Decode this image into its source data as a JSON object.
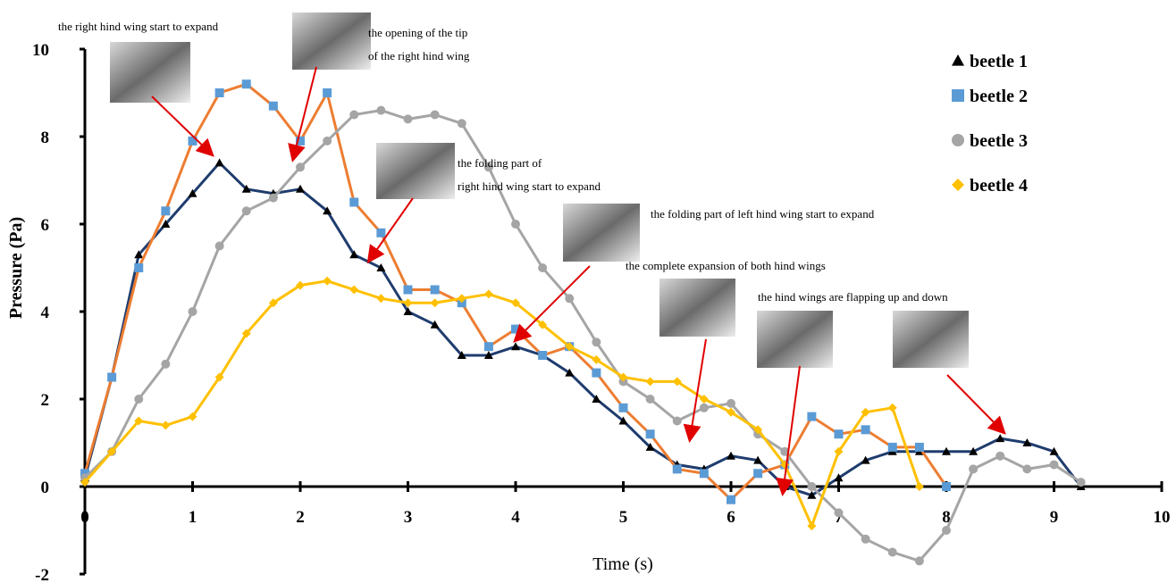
{
  "chart_data": {
    "type": "line",
    "x_label": "Time (s)",
    "y_label": "Pressure (Pa)",
    "x": [
      0,
      0.25,
      0.5,
      0.75,
      1,
      1.25,
      1.5,
      1.75,
      2,
      2.25,
      2.5,
      2.75,
      3,
      3.25,
      3.5,
      3.75,
      4,
      4.25,
      4.5,
      4.75,
      5,
      5.25,
      5.5,
      5.75,
      6,
      6.25,
      6.5,
      6.75,
      7,
      7.25,
      7.5,
      7.75,
      8,
      8.25,
      8.5,
      8.75,
      9,
      9.25
    ],
    "series": [
      {
        "name": "beetle 1",
        "color": "#000000",
        "line_color": "#1f3c6e",
        "marker": "triangle",
        "values": [
          0.2,
          2.5,
          5.3,
          6.0,
          6.7,
          7.4,
          6.8,
          6.7,
          6.8,
          6.3,
          5.3,
          5.0,
          4.0,
          3.7,
          3.0,
          3.0,
          3.2,
          3.0,
          2.6,
          2.0,
          1.5,
          0.9,
          0.5,
          0.4,
          0.7,
          0.6,
          0.0,
          -0.2,
          0.2,
          0.6,
          0.8,
          0.8,
          0.8,
          0.8,
          1.1,
          1.0,
          0.8,
          0
        ]
      },
      {
        "name": "beetle 2",
        "color": "#5b9bd5",
        "line_color": "#ed7d31",
        "marker": "square",
        "values": [
          0.3,
          2.5,
          5.0,
          6.3,
          7.9,
          9.0,
          9.2,
          8.7,
          7.9,
          9.0,
          6.5,
          5.8,
          4.5,
          4.5,
          4.2,
          3.2,
          3.6,
          3.0,
          3.2,
          2.6,
          1.8,
          1.2,
          0.4,
          0.3,
          -0.3,
          0.3,
          0.5,
          1.6,
          1.2,
          1.3,
          0.9,
          0.9,
          0,
          null,
          null,
          null,
          null,
          null
        ]
      },
      {
        "name": "beetle 3",
        "color": "#a5a5a5",
        "line_color": "#a5a5a5",
        "marker": "circle",
        "values": [
          0.2,
          0.8,
          2.0,
          2.8,
          4.0,
          5.5,
          6.3,
          6.6,
          7.3,
          7.9,
          8.5,
          8.6,
          8.4,
          8.5,
          8.3,
          7.3,
          6.0,
          5.0,
          4.3,
          3.3,
          2.4,
          2.0,
          1.5,
          1.8,
          1.9,
          1.2,
          0.8,
          0,
          -0.6,
          -1.2,
          -1.5,
          -1.7,
          -1.0,
          0.4,
          0.7,
          0.4,
          0.5,
          0.1
        ]
      },
      {
        "name": "beetle 4",
        "color": "#ffc000",
        "line_color": "#ffc000",
        "marker": "diamond",
        "values": [
          0.1,
          0.8,
          1.5,
          1.4,
          1.6,
          2.5,
          3.5,
          4.2,
          4.6,
          4.7,
          4.5,
          4.3,
          4.2,
          4.2,
          4.3,
          4.4,
          4.2,
          3.7,
          3.2,
          2.9,
          2.5,
          2.4,
          2.4,
          2.0,
          1.7,
          1.3,
          0.5,
          -0.9,
          0.8,
          1.7,
          1.8,
          0,
          null,
          null,
          null,
          null,
          null,
          null
        ]
      }
    ],
    "xlim": [
      0,
      10
    ],
    "ylim": [
      -2,
      10
    ],
    "xticks": [
      0,
      1,
      2,
      3,
      4,
      5,
      6,
      7,
      8,
      9,
      10
    ],
    "yticks": [
      -2,
      0,
      2,
      4,
      6,
      8,
      10
    ],
    "annotations": [
      [
        "the right hind wing start to expand"
      ],
      [
        "the opening of the tip",
        "of the right hind wing"
      ],
      [
        "the folding part of",
        "right hind wing start to expand"
      ],
      [
        "the folding part of left hind wing start to expand"
      ],
      [
        "the complete expansion of both hind wings"
      ],
      [
        "the hind wings are flapping up and down"
      ]
    ]
  }
}
